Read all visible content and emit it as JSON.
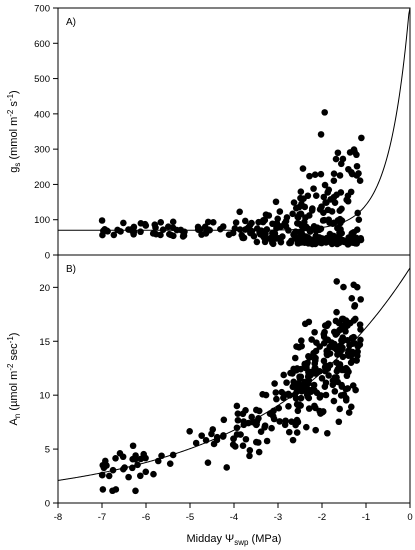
{
  "chart_data": [
    {
      "type": "scatter",
      "panel_label": "A)",
      "ylabel": {
        "base": "g",
        "sub": "s",
        "unit_prefix": " (mmol m",
        "sup1": "-2",
        "mid": " s",
        "sup2": "-1",
        "unit_suffix": ")"
      },
      "xlim": [
        -8,
        0
      ],
      "ylim": [
        0,
        700
      ],
      "yticks": [
        0,
        100,
        200,
        300,
        400,
        500,
        600,
        700
      ],
      "fit": {
        "type": "exponential",
        "a": 70,
        "b": 650,
        "c": 2.2
      },
      "seed": 11,
      "n_points": 330
    },
    {
      "type": "scatter",
      "panel_label": "B)",
      "ylabel": {
        "base": "A",
        "sub": "n",
        "unit_prefix": " (µmol m",
        "sup1": "-2",
        "mid": " sec",
        "sup2": "-1",
        "unit_suffix": ")"
      },
      "xlim": [
        -8,
        0
      ],
      "ylim": [
        0,
        23
      ],
      "yticks": [
        0,
        5,
        10,
        15,
        20
      ],
      "fit": {
        "type": "exponential",
        "a": 0,
        "b": 21.8,
        "c": 0.293
      },
      "seed": 29,
      "n_points": 330
    }
  ],
  "x_axis": {
    "ticks": [
      -8,
      -7,
      -6,
      -5,
      -4,
      -3,
      -2,
      -1,
      0
    ],
    "label_prefix": "Midday Ψ",
    "label_sub": "swp",
    "label_suffix": " (MPa)"
  }
}
